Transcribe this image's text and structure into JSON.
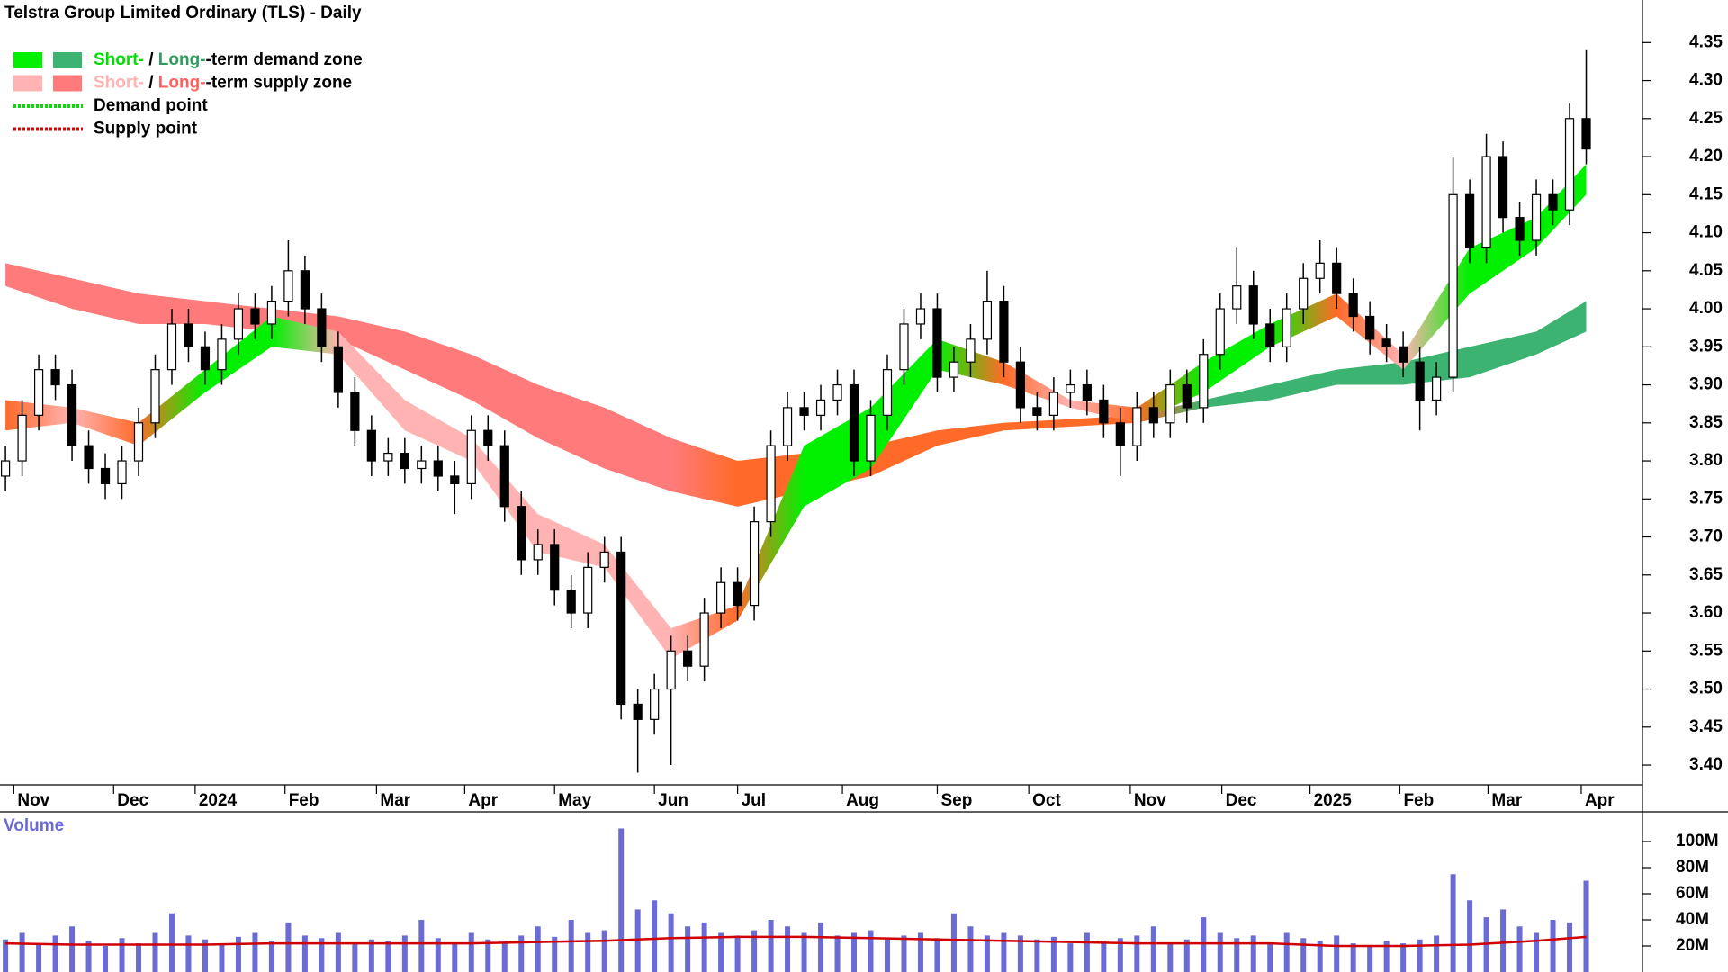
{
  "chart_data": {
    "type": "candlestick",
    "title": "Telstra Group Limited Ordinary (TLS) - Daily",
    "xlim": [
      -0.33,
      96
    ],
    "xticks": [
      {
        "value": 0.5,
        "label": "Nov"
      },
      {
        "value": 6.5,
        "label": "Dec"
      },
      {
        "value": 11.4,
        "label": "2024"
      },
      {
        "value": 16.8,
        "label": "Feb"
      },
      {
        "value": 22.3,
        "label": "Mar"
      },
      {
        "value": 27.6,
        "label": "Apr"
      },
      {
        "value": 33,
        "label": "May"
      },
      {
        "value": 39,
        "label": "Jun"
      },
      {
        "value": 44,
        "label": "Jul"
      },
      {
        "value": 50.3,
        "label": "Aug"
      },
      {
        "value": 56,
        "label": "Sep"
      },
      {
        "value": 61.5,
        "label": "Oct"
      },
      {
        "value": 67.6,
        "label": "Nov"
      },
      {
        "value": 73.1,
        "label": "Dec"
      },
      {
        "value": 78.4,
        "label": "2025"
      },
      {
        "value": 83.8,
        "label": "Feb"
      },
      {
        "value": 89.1,
        "label": "Mar"
      },
      {
        "value": 94.7,
        "label": "Apr"
      }
    ],
    "ylim": [
      3.374,
      4.406
    ],
    "yticks": [
      {
        "value": 3.4,
        "label": "3.40"
      },
      {
        "value": 3.45,
        "label": "3.45"
      },
      {
        "value": 3.5,
        "label": "3.50"
      },
      {
        "value": 3.55,
        "label": "3.55"
      },
      {
        "value": 3.6,
        "label": "3.60"
      },
      {
        "value": 3.65,
        "label": "3.65"
      },
      {
        "value": 3.7,
        "label": "3.70"
      },
      {
        "value": 3.75,
        "label": "3.75"
      },
      {
        "value": 3.8,
        "label": "3.80"
      },
      {
        "value": 3.85,
        "label": "3.85"
      },
      {
        "value": 3.9,
        "label": "3.90"
      },
      {
        "value": 3.95,
        "label": "3.95"
      },
      {
        "value": 4.0,
        "label": "4.00"
      },
      {
        "value": 4.05,
        "label": "4.05"
      },
      {
        "value": 4.1,
        "label": "4.10"
      },
      {
        "value": 4.15,
        "label": "4.15"
      },
      {
        "value": 4.2,
        "label": "4.20"
      },
      {
        "value": 4.25,
        "label": "4.25"
      },
      {
        "value": 4.3,
        "label": "4.30"
      },
      {
        "value": 4.35,
        "label": "4.35"
      }
    ],
    "up_color": "#ffffff",
    "down_color": "#000000",
    "candles": {
      "open": [
        3.78,
        3.8,
        3.86,
        3.92,
        3.9,
        3.82,
        3.79,
        3.77,
        3.8,
        3.85,
        3.92,
        3.98,
        3.95,
        3.92,
        3.96,
        4.0,
        3.98,
        4.01,
        4.05,
        4.0,
        3.95,
        3.89,
        3.84,
        3.8,
        3.81,
        3.79,
        3.8,
        3.78,
        3.77,
        3.84,
        3.82,
        3.74,
        3.67,
        3.69,
        3.63,
        3.6,
        3.66,
        3.68,
        3.48,
        3.46,
        3.5,
        3.55,
        3.53,
        3.6,
        3.64,
        3.61,
        3.72,
        3.82,
        3.87,
        3.86,
        3.88,
        3.9,
        3.8,
        3.86,
        3.92,
        3.98,
        4.0,
        3.91,
        3.93,
        3.96,
        4.01,
        3.93,
        3.87,
        3.86,
        3.89,
        3.9,
        3.88,
        3.85,
        3.82,
        3.87,
        3.85,
        3.9,
        3.87,
        3.94,
        4.0,
        4.03,
        3.98,
        3.95,
        4.0,
        4.04,
        4.06,
        4.02,
        3.99,
        3.96,
        3.95,
        3.93,
        3.88,
        3.91,
        4.15,
        4.08,
        4.2,
        4.12,
        4.09,
        4.15,
        4.13,
        4.25
      ],
      "high": [
        3.82,
        3.88,
        3.94,
        3.94,
        3.92,
        3.84,
        3.81,
        3.82,
        3.87,
        3.94,
        4.0,
        4.0,
        3.97,
        3.98,
        4.02,
        4.02,
        4.03,
        4.09,
        4.07,
        4.02,
        3.97,
        3.91,
        3.86,
        3.83,
        3.83,
        3.82,
        3.82,
        3.8,
        3.86,
        3.86,
        3.84,
        3.76,
        3.71,
        3.71,
        3.65,
        3.68,
        3.7,
        3.7,
        3.5,
        3.52,
        3.57,
        3.57,
        3.62,
        3.66,
        3.66,
        3.74,
        3.84,
        3.89,
        3.89,
        3.9,
        3.92,
        3.92,
        3.88,
        3.94,
        4.0,
        4.02,
        4.02,
        3.95,
        3.98,
        4.05,
        4.03,
        3.95,
        3.89,
        3.91,
        3.92,
        3.92,
        3.9,
        3.87,
        3.89,
        3.89,
        3.92,
        3.92,
        3.96,
        4.02,
        4.08,
        4.05,
        4.0,
        4.02,
        4.06,
        4.09,
        4.08,
        4.04,
        4.01,
        3.98,
        3.97,
        3.95,
        3.93,
        4.2,
        4.17,
        4.23,
        4.22,
        4.14,
        4.17,
        4.17,
        4.27,
        4.34
      ],
      "low": [
        3.76,
        3.78,
        3.84,
        3.88,
        3.8,
        3.77,
        3.75,
        3.75,
        3.78,
        3.83,
        3.9,
        3.93,
        3.9,
        3.9,
        3.94,
        3.96,
        3.96,
        3.99,
        3.98,
        3.93,
        3.87,
        3.82,
        3.78,
        3.78,
        3.77,
        3.77,
        3.76,
        3.73,
        3.75,
        3.8,
        3.72,
        3.65,
        3.65,
        3.61,
        3.58,
        3.58,
        3.64,
        3.46,
        3.39,
        3.44,
        3.4,
        3.51,
        3.51,
        3.58,
        3.59,
        3.59,
        3.7,
        3.8,
        3.84,
        3.84,
        3.86,
        3.78,
        3.78,
        3.84,
        3.9,
        3.96,
        3.89,
        3.89,
        3.91,
        3.94,
        3.91,
        3.85,
        3.84,
        3.84,
        3.87,
        3.86,
        3.83,
        3.78,
        3.8,
        3.83,
        3.83,
        3.85,
        3.85,
        3.92,
        3.98,
        3.96,
        3.93,
        3.93,
        3.98,
        4.02,
        4.0,
        3.97,
        3.94,
        3.93,
        3.91,
        3.84,
        3.86,
        3.89,
        4.06,
        4.06,
        4.1,
        4.07,
        4.07,
        4.11,
        4.11,
        4.19
      ],
      "close": [
        3.8,
        3.86,
        3.92,
        3.9,
        3.82,
        3.79,
        3.77,
        3.8,
        3.85,
        3.92,
        3.98,
        3.95,
        3.92,
        3.96,
        4.0,
        3.98,
        4.01,
        4.05,
        4.0,
        3.95,
        3.89,
        3.84,
        3.8,
        3.81,
        3.79,
        3.8,
        3.78,
        3.77,
        3.84,
        3.82,
        3.74,
        3.67,
        3.69,
        3.63,
        3.6,
        3.66,
        3.68,
        3.48,
        3.46,
        3.5,
        3.55,
        3.53,
        3.6,
        3.64,
        3.61,
        3.72,
        3.82,
        3.87,
        3.86,
        3.88,
        3.9,
        3.8,
        3.86,
        3.92,
        3.98,
        4.0,
        3.91,
        3.93,
        3.96,
        4.01,
        3.93,
        3.87,
        3.86,
        3.89,
        3.9,
        3.88,
        3.85,
        3.82,
        3.87,
        3.85,
        3.9,
        3.87,
        3.94,
        4.0,
        4.03,
        3.98,
        3.95,
        4.0,
        4.04,
        4.06,
        4.02,
        3.99,
        3.96,
        3.95,
        3.93,
        3.88,
        3.91,
        4.15,
        4.08,
        4.2,
        4.12,
        4.09,
        4.15,
        4.13,
        4.25,
        4.21
      ]
    },
    "zones": {
      "x": [
        0,
        4,
        8,
        12,
        16,
        20,
        24,
        28,
        32,
        36,
        40,
        44,
        48,
        52,
        56,
        60,
        64,
        68,
        72,
        76,
        80,
        84,
        88,
        92,
        95
      ],
      "long": {
        "upper": [
          4.06,
          4.04,
          4.02,
          4.01,
          4.0,
          3.99,
          3.97,
          3.94,
          3.9,
          3.87,
          3.83,
          3.8,
          3.81,
          3.82,
          3.84,
          3.85,
          3.855,
          3.86,
          3.88,
          3.9,
          3.92,
          3.93,
          3.95,
          3.97,
          4.01
        ],
        "lower": [
          4.03,
          4.0,
          3.98,
          3.98,
          3.97,
          3.96,
          3.92,
          3.88,
          3.83,
          3.79,
          3.76,
          3.74,
          3.76,
          3.78,
          3.82,
          3.84,
          3.845,
          3.85,
          3.87,
          3.88,
          3.9,
          3.9,
          3.91,
          3.94,
          3.97
        ],
        "colors": [
          "#ff7b7b",
          "#ff7b7b",
          "#ff7b7b",
          "#ff7b7b",
          "#ff7b7b",
          "#ff7b7b",
          "#ff7b7b",
          "#ff7b7b",
          "#ff7b7b",
          "#ff7b7b",
          "#ff7b7b",
          "#ff6a28",
          "#ff6a28",
          "#ff6a28",
          "#ff6a28",
          "#ff6a28",
          "#ff6a28",
          "#ff6a28",
          "#3cb371",
          "#3cb371",
          "#3cb371",
          "#3cb371",
          "#3cb371",
          "#3cb371",
          "#3cb371"
        ]
      },
      "short": {
        "upper": [
          3.88,
          3.87,
          3.85,
          3.92,
          3.99,
          3.97,
          3.88,
          3.83,
          3.73,
          3.69,
          3.58,
          3.61,
          3.82,
          3.87,
          3.96,
          3.93,
          3.88,
          3.87,
          3.93,
          3.98,
          4.02,
          3.94,
          4.08,
          4.12,
          4.19
        ],
        "lower": [
          3.84,
          3.85,
          3.82,
          3.89,
          3.95,
          3.94,
          3.84,
          3.8,
          3.68,
          3.66,
          3.54,
          3.59,
          3.74,
          3.79,
          3.92,
          3.9,
          3.87,
          3.85,
          3.89,
          3.95,
          3.99,
          3.92,
          4.02,
          4.08,
          4.15
        ],
        "colors": [
          "#ff6a28",
          "#ffb3b3",
          "#ff6a28",
          "#00f000",
          "#00f000",
          "#ffb3b3",
          "#ffb3b3",
          "#ffb3b3",
          "#ffb3b3",
          "#ffb3b3",
          "#ffb3b3",
          "#ff6a28",
          "#00f000",
          "#00f000",
          "#00f000",
          "#ff6a28",
          "#ffb3b3",
          "#ff6a28",
          "#00f000",
          "#00f000",
          "#ff6a28",
          "#ffb3b3",
          "#00f000",
          "#00f000",
          "#00f000"
        ]
      }
    },
    "legend": [
      {
        "swatches": [
          "#00f000",
          "#3cb371"
        ],
        "parts": [
          "Short-",
          " / ",
          "Long-",
          "-term demand zone"
        ],
        "text_colors": [
          "#00e000",
          "#000000",
          "#2e9d5e",
          "#000000"
        ]
      },
      {
        "swatches": [
          "#ffb3b3",
          "#ff7b7b"
        ],
        "parts": [
          "Short-",
          " / ",
          "Long-",
          "-term supply zone"
        ],
        "text_colors": [
          "#ffb3b3",
          "#000000",
          "#ff6060",
          "#000000"
        ]
      },
      {
        "line": "#00e000",
        "parts": [
          "Demand point"
        ],
        "text_colors": [
          "#000000"
        ]
      },
      {
        "line": "#e00000",
        "parts": [
          "Supply point"
        ],
        "text_colors": [
          "#000000"
        ]
      }
    ],
    "volume": {
      "label": "Volume",
      "color": "#6b6bd6",
      "ylim": [
        0,
        120
      ],
      "yticks": [
        {
          "value": 20,
          "label": "20M"
        },
        {
          "value": 40,
          "label": "40M"
        },
        {
          "value": 60,
          "label": "60M"
        },
        {
          "value": 80,
          "label": "80M"
        },
        {
          "value": 100,
          "label": "100M"
        }
      ],
      "values": [
        25,
        30,
        22,
        28,
        35,
        24,
        20,
        26,
        22,
        30,
        45,
        28,
        25,
        22,
        27,
        30,
        24,
        38,
        28,
        26,
        30,
        22,
        25,
        24,
        28,
        40,
        26,
        22,
        30,
        25,
        24,
        28,
        35,
        27,
        40,
        30,
        32,
        110,
        48,
        55,
        45,
        35,
        38,
        30,
        28,
        32,
        40,
        35,
        30,
        38,
        28,
        30,
        32,
        25,
        28,
        30,
        26,
        45,
        35,
        28,
        30,
        28,
        25,
        27,
        22,
        30,
        24,
        26,
        28,
        35,
        22,
        25,
        42,
        30,
        26,
        28,
        22,
        30,
        26,
        24,
        28,
        22,
        20,
        24,
        22,
        25,
        28,
        75,
        55,
        42,
        48,
        35,
        30,
        40,
        38,
        70
      ],
      "ma": {
        "color": "#d00000",
        "values": [
          22,
          21,
          21,
          21,
          22,
          22,
          22,
          22,
          23,
          24,
          26,
          27,
          27,
          26,
          25,
          24,
          23,
          22,
          22,
          22,
          20,
          20,
          21,
          24,
          27
        ]
      }
    }
  }
}
